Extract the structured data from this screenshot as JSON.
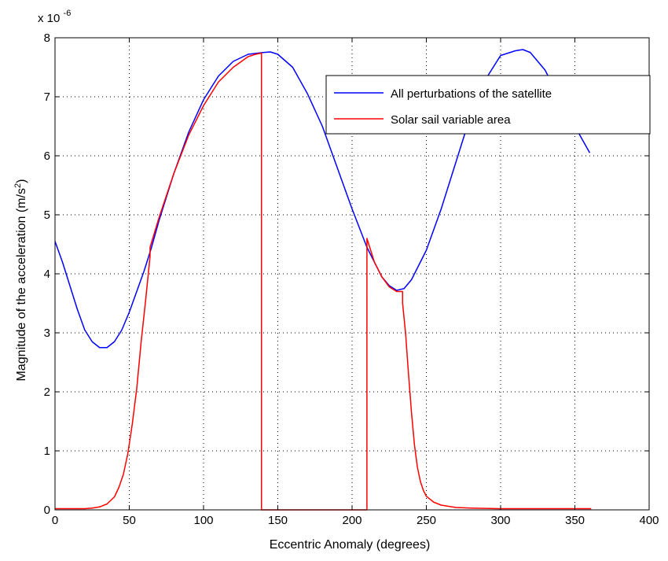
{
  "chart_data": {
    "type": "line",
    "title": "",
    "xlabel": "Eccentric Anomaly (degrees)",
    "ylabel_text": "Magnitude of the acceleration (m/s",
    "ylabel_exp": "2",
    "ylabel_close": ")",
    "y_exponent_base": "x 10",
    "y_exponent_power": "-6",
    "xlim": [
      0,
      400
    ],
    "ylim": [
      0,
      8
    ],
    "xticks": [
      0,
      50,
      100,
      150,
      200,
      250,
      300,
      350,
      400
    ],
    "yticks": [
      0,
      1,
      2,
      3,
      4,
      5,
      6,
      7,
      8
    ],
    "grid": true,
    "legend_position": "top-right",
    "series": [
      {
        "name": "All perturbations of the satellite",
        "color": "#0000ff",
        "x": [
          0,
          5,
          10,
          15,
          20,
          25,
          30,
          35,
          40,
          45,
          50,
          55,
          60,
          65,
          70,
          80,
          90,
          100,
          110,
          120,
          130,
          140,
          145,
          150,
          160,
          170,
          180,
          190,
          200,
          210,
          220,
          225,
          230,
          235,
          240,
          250,
          260,
          270,
          280,
          290,
          300,
          310,
          315,
          320,
          330,
          340,
          350,
          360
        ],
        "y": [
          4.55,
          4.2,
          3.8,
          3.4,
          3.05,
          2.85,
          2.75,
          2.75,
          2.85,
          3.05,
          3.35,
          3.7,
          4.05,
          4.45,
          4.9,
          5.7,
          6.4,
          6.95,
          7.35,
          7.6,
          7.72,
          7.75,
          7.76,
          7.72,
          7.5,
          7.05,
          6.5,
          5.8,
          5.1,
          4.45,
          3.95,
          3.8,
          3.72,
          3.75,
          3.9,
          4.4,
          5.1,
          5.9,
          6.7,
          7.3,
          7.7,
          7.78,
          7.8,
          7.75,
          7.45,
          6.95,
          6.5,
          6.05
        ]
      },
      {
        "name": "Solar sail variable area",
        "color": "#ff0000",
        "x": [
          0,
          10,
          20,
          25,
          30,
          35,
          40,
          43,
          46,
          49,
          52,
          55,
          58,
          61,
          64,
          64.01,
          70,
          80,
          90,
          100,
          110,
          120,
          130,
          135,
          138.99,
          139,
          139.01,
          209.99,
          210,
          210.01,
          215,
          220,
          225,
          230,
          232,
          234,
          234.01,
          236,
          238,
          240,
          242,
          244,
          246,
          248,
          250,
          255,
          260,
          270,
          280,
          300,
          320,
          340,
          345,
          350,
          361
        ],
        "y": [
          0.02,
          0.02,
          0.02,
          0.03,
          0.05,
          0.1,
          0.22,
          0.38,
          0.6,
          0.95,
          1.45,
          2.05,
          2.85,
          3.55,
          4.3,
          4.45,
          4.95,
          5.7,
          6.35,
          6.85,
          7.25,
          7.5,
          7.68,
          7.72,
          7.74,
          0.0,
          0.0,
          0.0,
          4.6,
          4.6,
          4.2,
          3.95,
          3.78,
          3.7,
          3.7,
          3.7,
          3.5,
          3.0,
          2.3,
          1.65,
          1.1,
          0.72,
          0.48,
          0.33,
          0.23,
          0.13,
          0.08,
          0.04,
          0.03,
          0.02,
          0.02,
          0.02,
          0.02,
          0.02,
          0.02
        ]
      }
    ]
  },
  "colors": {
    "axis": "#000000",
    "background": "#ffffff"
  }
}
